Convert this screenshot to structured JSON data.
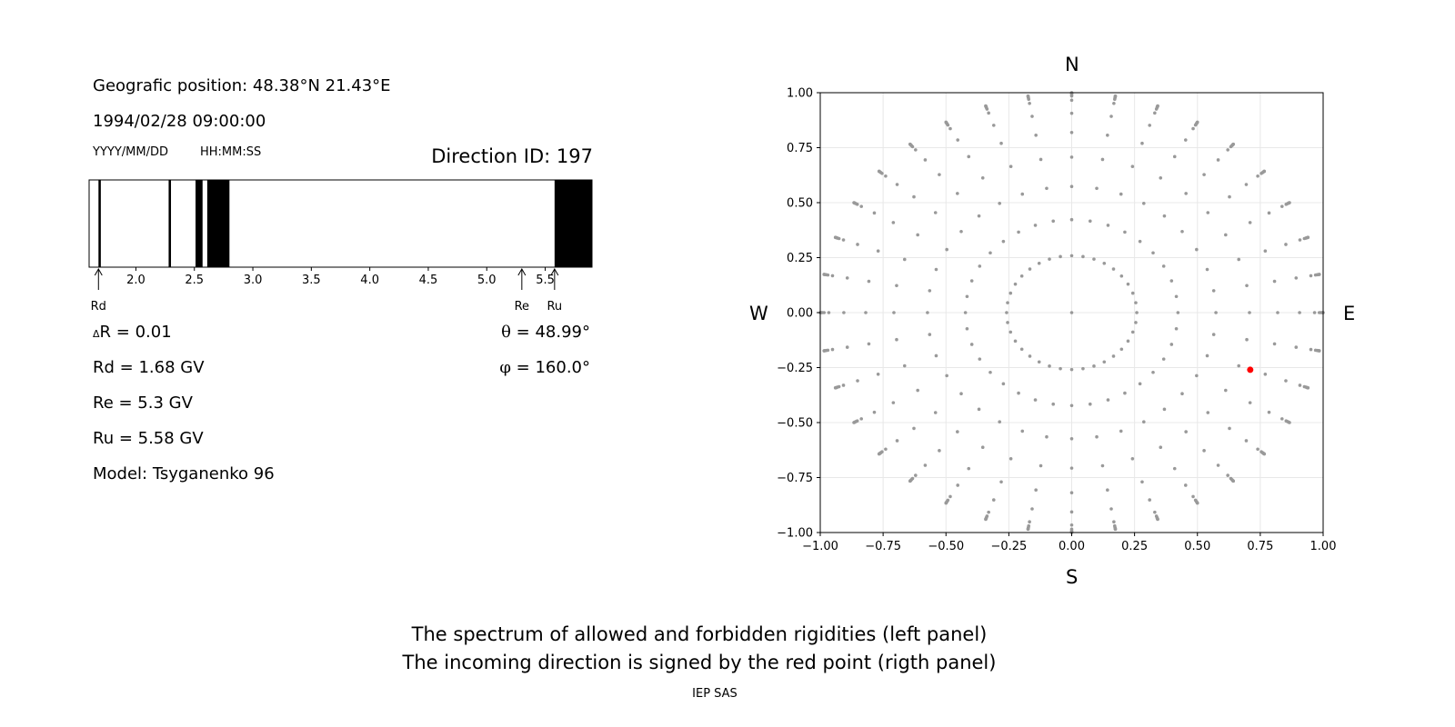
{
  "info": {
    "position": "Geografic position: 48.38°N 21.43°E",
    "datetime": "1994/02/28 09:00:00",
    "date_format": "YYYY/MM/DD",
    "time_format": "HH:MM:SS",
    "direction": "Direction ID: 197"
  },
  "params": {
    "delta_r_symbol": "Δ",
    "delta_r": "R = 0.01",
    "rd": "Rd = 1.68 GV",
    "re": "Re = 5.3 GV",
    "ru": "Ru = 5.58 GV",
    "model": "Model: Tsyganenko 96",
    "theta_symbol": "θ",
    "theta": "= 48.99°",
    "phi_symbol": "φ",
    "phi": "= 160.0°"
  },
  "compass": {
    "north": "N",
    "south": "S",
    "west": "W",
    "east": "E"
  },
  "footer": {
    "line1": "The spectrum of allowed and forbidden rigidities (left panel)",
    "line2": "The incoming direction is signed by the red point (rigth panel)",
    "credit": "IEP SAS"
  },
  "chart_data": [
    {
      "type": "bar",
      "name": "rigidity spectrum",
      "xlim": [
        1.6,
        5.9
      ],
      "xticks": [
        2.0,
        2.5,
        3.0,
        3.5,
        4.0,
        4.5,
        5.0,
        5.5
      ],
      "xtick_labels": [
        "2.0",
        "2.5",
        "3.0",
        "3.5",
        "4.0",
        "4.5",
        "5.0",
        "5.5"
      ],
      "forbidden_intervals": [
        [
          1.68,
          1.7
        ],
        [
          2.28,
          2.3
        ],
        [
          2.51,
          2.57
        ],
        [
          2.61,
          2.8
        ],
        [
          5.58,
          5.9
        ]
      ],
      "markers": [
        {
          "label": "Rd",
          "value": 1.68
        },
        {
          "label": "Re",
          "value": 5.3
        },
        {
          "label": "Ru",
          "value": 5.58
        }
      ]
    },
    {
      "type": "scatter",
      "name": "direction map",
      "xlim": [
        -1,
        1
      ],
      "ylim": [
        -1,
        1
      ],
      "ticks": [
        -1.0,
        -0.75,
        -0.5,
        -0.25,
        0.0,
        0.25,
        0.5,
        0.75,
        1.0
      ],
      "tick_labels": [
        "−1.00",
        "−0.75",
        "−0.50",
        "−0.25",
        "0.00",
        "0.25",
        "0.50",
        "0.75",
        "1.00"
      ],
      "grid": true,
      "grid_points": {
        "zenith_degrees": [
          0,
          15,
          25,
          35,
          45,
          55,
          65,
          75,
          80,
          82.5,
          85,
          87.5,
          90
        ],
        "azimuth_step_degrees": 10,
        "point_color": "#999999"
      },
      "highlight": {
        "x": 0.71,
        "y": -0.26,
        "color": "#ff0000"
      }
    }
  ]
}
